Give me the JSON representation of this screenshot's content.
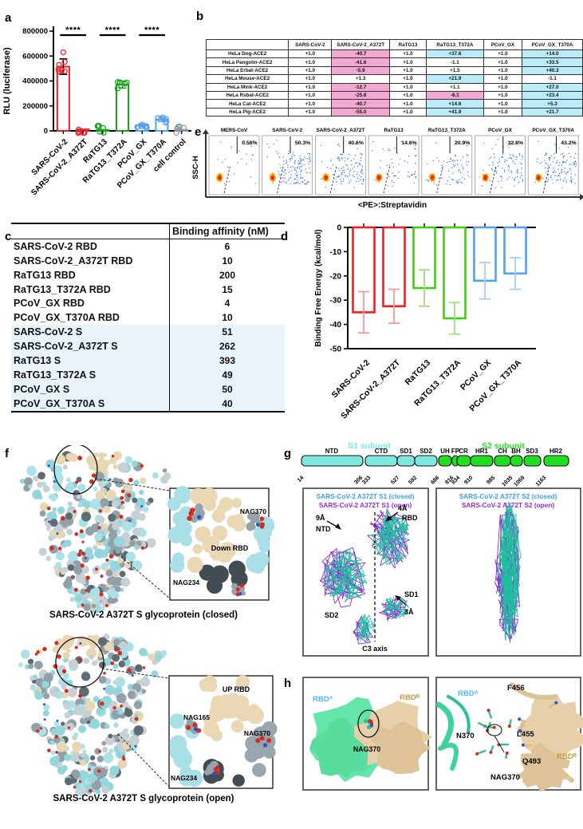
{
  "labels": {
    "a": "a",
    "b": "b",
    "c": "c",
    "d": "d",
    "e": "e",
    "f": "f",
    "g": "g",
    "h": "h"
  },
  "chart_data": [
    {
      "id": "panel_a",
      "type": "bar",
      "ylabel": "RLU (luciferase)",
      "ylim": [
        0,
        800000
      ],
      "yticks": [
        0,
        200000,
        400000,
        600000,
        800000
      ],
      "categories": [
        "SARS-CoV-2",
        "SARS-CoV-2_A372T",
        "RaTG13",
        "RaTG13_T372A",
        "PCoV_GX",
        "PCoV_GX_T370A",
        "cell control"
      ],
      "values": [
        515000,
        12000,
        8000,
        372000,
        45000,
        92000,
        8000
      ],
      "errors": [
        62000,
        4000,
        3000,
        28000,
        12000,
        16000,
        3000
      ],
      "colors": [
        "#ee2024",
        "#ee2024",
        "#18a51c",
        "#18a51c",
        "#55a0f0",
        "#55a0f0",
        "#8f989e"
      ],
      "significance": [
        {
          "between": [
            0,
            1
          ],
          "label": "****"
        },
        {
          "between": [
            2,
            3
          ],
          "label": "****"
        },
        {
          "between": [
            4,
            5
          ],
          "label": "****"
        }
      ]
    },
    {
      "id": "panel_d",
      "type": "bar",
      "ylabel": "Binding Free Energy (kcal/mol)",
      "ylim": [
        -50,
        0
      ],
      "yticks": [
        0,
        -10,
        -20,
        -30,
        -40,
        -50
      ],
      "categories": [
        "SARS-CoV-2",
        "SARS-CoV-2_A372T",
        "RaTG13",
        "RaTG13_T372A",
        "PCoV_GX",
        "PCoV_GX_T370A"
      ],
      "values": [
        -35,
        -32.5,
        -25,
        -37.5,
        -22,
        -19
      ],
      "errors": [
        8.5,
        7,
        7.5,
        6.5,
        7.5,
        6.5
      ],
      "colors": [
        "#ee2024",
        "#ee2024",
        "#44cc11",
        "#44cc11",
        "#55a0f0",
        "#55a0f0"
      ],
      "error_colors": [
        "#f59a9a",
        "#f59a9a",
        "#9ce07a",
        "#9ce07a",
        "#a8cdf5",
        "#a8cdf5"
      ]
    }
  ],
  "panel_b": {
    "columns": [
      "",
      "SARS-CoV-2",
      "SARS-CoV-2_A372T",
      "RaTG13",
      "RaTG13_T372A",
      "PCoV_GX",
      "PCoV_GX_T370A"
    ],
    "rows": [
      {
        "label": "HeLa Dog-ACE2",
        "values": [
          "+1.0",
          "-40.7",
          "+1.0",
          "+37.6",
          "+1.0",
          "+14.0"
        ],
        "highlight": [
          "none",
          "down",
          "none",
          "up",
          "none",
          "up"
        ]
      },
      {
        "label": "HeLa Pangolin-ACE2",
        "values": [
          "+1.0",
          "-41.6",
          "+1.0",
          "-1.1",
          "+1.0",
          "+33.5"
        ],
        "highlight": [
          "none",
          "down",
          "none",
          "none",
          "none",
          "up"
        ]
      },
      {
        "label": "HeLa Erbat-ACE2",
        "values": [
          "+1.0",
          "-5.9",
          "+1.0",
          "+1.5",
          "+1.0",
          "+40.3"
        ],
        "highlight": [
          "none",
          "down",
          "none",
          "none",
          "none",
          "up"
        ]
      },
      {
        "label": "HeLa Mouse-ACE2",
        "values": [
          "+1.0",
          "+1.3",
          "+1.0",
          "+21.9",
          "+1.0",
          "-1.1"
        ],
        "highlight": [
          "none",
          "none",
          "none",
          "up",
          "none",
          "none"
        ]
      },
      {
        "label": "HeLa Mink-ACE2",
        "values": [
          "+1.0",
          "-12.7",
          "+1.0",
          "+1.1",
          "+1.0",
          "+27.0"
        ],
        "highlight": [
          "none",
          "down",
          "none",
          "none",
          "none",
          "up"
        ]
      },
      {
        "label": "HeLa Rsbat-ACE2",
        "values": [
          "+1.0",
          "-25.8",
          "+1.0",
          "-6.1",
          "+1.0",
          "+23.4"
        ],
        "highlight": [
          "none",
          "down",
          "none",
          "down",
          "none",
          "up"
        ]
      },
      {
        "label": "HeLa Cat-ACE2",
        "values": [
          "+1.0",
          "-40.7",
          "+1.0",
          "+14.6",
          "+1.0",
          "+5.3"
        ],
        "highlight": [
          "none",
          "down",
          "none",
          "up",
          "none",
          "up"
        ]
      },
      {
        "label": "HeLa Pig-ACE2",
        "values": [
          "+1.0",
          "-55.0",
          "+1.0",
          "+41.9",
          "+1.0",
          "+21.7"
        ],
        "highlight": [
          "none",
          "down",
          "none",
          "up",
          "none",
          "up"
        ]
      }
    ],
    "highlight_down_color": "#f3a8d2",
    "highlight_up_color": "#b9ebf8"
  },
  "panel_c": {
    "header": "Binding affinity (nM)",
    "rows": [
      {
        "label": "SARS-CoV-2 RBD",
        "value": "6",
        "shade": false
      },
      {
        "label": "SARS-CoV-2_A372T RBD",
        "value": "10",
        "shade": false
      },
      {
        "label": "RaTG13 RBD",
        "value": "200",
        "shade": false
      },
      {
        "label": "RaTG13_T372A RBD",
        "value": "15",
        "shade": false
      },
      {
        "label": "PCoV_GX RBD",
        "value": "4",
        "shade": false
      },
      {
        "label": "PCoV_GX_T370A RBD",
        "value": "10",
        "shade": false
      },
      {
        "label": "SARS-CoV-2 S",
        "value": "51",
        "shade": true
      },
      {
        "label": "SARS-CoV-2_A372T S",
        "value": "262",
        "shade": true
      },
      {
        "label": "RaTG13 S",
        "value": "393",
        "shade": true
      },
      {
        "label": "RaTG13_T372A S",
        "value": "49",
        "shade": true
      },
      {
        "label": "PCoV_GX S",
        "value": "50",
        "shade": true
      },
      {
        "label": "PCoV_GX_T370A S",
        "value": "40",
        "shade": true
      }
    ]
  },
  "panel_e": {
    "ylabel": "SSC-H",
    "xlabel": "<PE>:Streptavidin",
    "plots": [
      {
        "title": "MERS-CoV",
        "percent": "0.58%",
        "pct": 0.58
      },
      {
        "title": "SARS-CoV-2",
        "percent": "50.3%",
        "pct": 50.3
      },
      {
        "title": "SARS-CoV-2_A372T",
        "percent": "40.6%",
        "pct": 40.6
      },
      {
        "title": "RaTG13",
        "percent": "14.6%",
        "pct": 14.6
      },
      {
        "title": "RaTG13_T372A",
        "percent": "20.9%",
        "pct": 20.9
      },
      {
        "title": "PCoV_GX",
        "percent": "32.8%",
        "pct": 32.8
      },
      {
        "title": "PCoV_GX_T370A",
        "percent": "43.2%",
        "pct": 43.2
      }
    ]
  },
  "panel_f": {
    "closed": {
      "caption": "SARS-CoV-2 A372T S glycoprotein (closed)",
      "labels": {
        "nag370": "NAG370",
        "down_rbd": "Down RBD",
        "nag234": "NAG234"
      }
    },
    "open": {
      "caption": "SARS-CoV-2 A372T S glycoprotein (open)",
      "labels": {
        "up_rbd": "UP RBD",
        "nag165": "NAG165",
        "nag370": "NAG370",
        "nag234": "NAG234"
      }
    }
  },
  "panel_g": {
    "s1_label": "S1 subunit",
    "s2_label": "S2 subunit",
    "s1_color": "#7de8e0",
    "s2_color": "#22dd22",
    "domains": [
      "NTD",
      "CTD",
      "SD1",
      "SD2",
      "UH",
      "FP",
      "CR",
      "HR1",
      "CH",
      "BH",
      "SD3",
      "HR2"
    ],
    "residues": [
      "14",
      "306",
      "333",
      "527",
      "592",
      "686",
      "816",
      "834",
      "910",
      "985",
      "1035",
      "1069",
      "1163"
    ],
    "legend_left": [
      "SARS-CoV-2 A372T S1 (closed)",
      "SARS-CoV-2 A372T S1 (open)"
    ],
    "legend_right": [
      "SARS-CoV-2 A372T S2 (closed)",
      "SARS-CoV-2 A372T S2 (open)"
    ],
    "closed_color": "#3aa0f0",
    "open_color": "#8e2fd6",
    "annotations": {
      "a9": "9Å",
      "ntd": "NTD",
      "a4": "4Å",
      "rbd": "RBD",
      "sd1": "SD1",
      "a3": "3Å",
      "sd2": "SD2",
      "c3": "C3 axis"
    }
  },
  "panel_h": {
    "left": {
      "rbd_a": "RBDᴬ",
      "rbd_b": "RBDᴮ",
      "nag370": "NAG370"
    },
    "right": {
      "rbd_a": "RBDᴬ",
      "f456": "F456",
      "n370": "N370",
      "l455": "L455",
      "q493": "Q493",
      "nag370": "NAG370",
      "rbd_b": "RBDᴮ"
    },
    "rbd_a_color": "#4db8ff",
    "rbd_b_color": "#c79a3d"
  }
}
